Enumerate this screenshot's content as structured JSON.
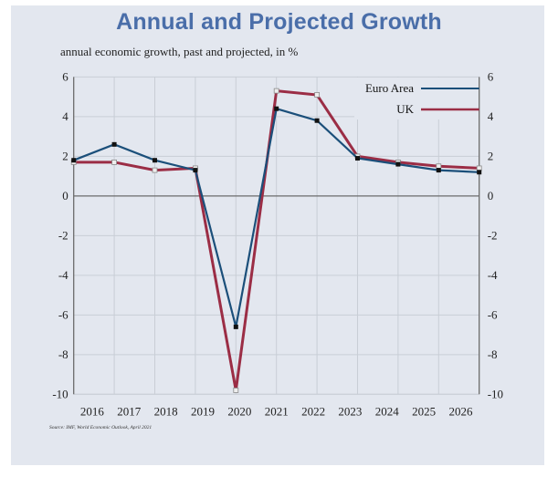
{
  "title": "Annual and Projected Growth",
  "subtitle": "annual economic growth, past and projected, in %",
  "source": "Source: IMF, World Economic Outlook, April 2021",
  "colors": {
    "background": "#e3e7ef",
    "title": "#4a6ea9",
    "euro_area": "#1b4f7a",
    "uk": "#9b2d45",
    "grid": "#c9ced6",
    "axis": "#6b6b6b"
  },
  "chart_data": {
    "type": "line",
    "title": "Annual and Projected Growth",
    "subtitle": "annual economic growth, past and projected, in %",
    "xlabel": "",
    "ylabel": "",
    "x": [
      "2016",
      "2017",
      "2018",
      "2019",
      "2020",
      "2021",
      "2022",
      "2023",
      "2024",
      "2025",
      "2026"
    ],
    "ylim": [
      -10,
      6
    ],
    "yticks": [
      6,
      4,
      2,
      0,
      -2,
      -4,
      -6,
      -8,
      -10
    ],
    "ytick_labels": [
      "6",
      "4",
      "2",
      "0",
      "-2",
      "-4",
      "-6",
      "-8",
      "-10"
    ],
    "grid": true,
    "dual_y_axis": true,
    "legend_position": "top-right",
    "series": [
      {
        "name": "Euro Area",
        "color": "#1b4f7a",
        "marker": "filled-square",
        "values": [
          1.8,
          2.6,
          1.8,
          1.3,
          -6.6,
          4.4,
          3.8,
          1.9,
          1.6,
          1.3,
          1.2
        ]
      },
      {
        "name": "UK",
        "color": "#9b2d45",
        "marker": "hollow-square",
        "values": [
          1.7,
          1.7,
          1.3,
          1.4,
          -9.8,
          5.3,
          5.1,
          2.0,
          1.7,
          1.5,
          1.4
        ]
      }
    ],
    "source": "Source: IMF, World Economic Outlook, April 2021"
  }
}
